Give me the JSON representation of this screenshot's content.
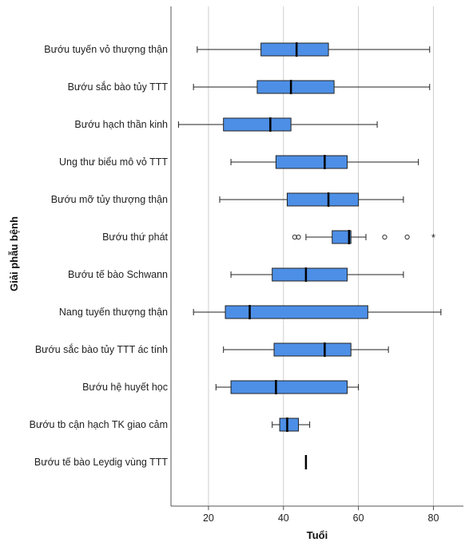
{
  "chart_data": {
    "type": "boxplot",
    "orientation": "horizontal",
    "xlabel": "Tuổi",
    "ylabel": "Giải phẫu bệnh",
    "xlim": [
      10,
      88
    ],
    "xticks": [
      20,
      40,
      60,
      80
    ],
    "grid": "vertical",
    "box_color": "#4d8fe6",
    "categories": [
      "Bướu tuyến vỏ thượng thận",
      "Bướu sắc bào tủy TTT",
      "Bướu hạch thần kinh",
      "Ung thư biểu mô vỏ TTT",
      "Bướu mỡ tủy thượng thận",
      "Bướu thứ phát",
      "Bướu tế bào Schwann",
      "Nang tuyến thượng thận",
      "Bướu sắc bào tủy TTT ác tính",
      "Bướu hệ huyết học",
      "Bướu tb cận hạch TK giao cảm",
      "Bướu tế bào Leydig vùng TTT"
    ],
    "boxes": [
      {
        "min": 17,
        "q1": 34,
        "median": 43.5,
        "q3": 52,
        "max": 79,
        "outliers": [],
        "extremes": []
      },
      {
        "min": 16,
        "q1": 33,
        "median": 42,
        "q3": 53.5,
        "max": 79,
        "outliers": [],
        "extremes": []
      },
      {
        "min": 12,
        "q1": 24,
        "median": 36.5,
        "q3": 42,
        "max": 65,
        "outliers": [],
        "extremes": []
      },
      {
        "min": 26,
        "q1": 38,
        "median": 51,
        "q3": 57,
        "max": 76,
        "outliers": [],
        "extremes": []
      },
      {
        "min": 23,
        "q1": 41,
        "median": 52,
        "q3": 60,
        "max": 72,
        "outliers": [],
        "extremes": []
      },
      {
        "min": 46,
        "q1": 53,
        "median": 57.5,
        "q3": 58,
        "max": 62,
        "outliers": [
          43,
          44,
          67,
          73
        ],
        "extremes": [
          80
        ]
      },
      {
        "min": 26,
        "q1": 37,
        "median": 46,
        "q3": 57,
        "max": 72,
        "outliers": [],
        "extremes": []
      },
      {
        "min": 16,
        "q1": 24.5,
        "median": 31,
        "q3": 62.5,
        "max": 82,
        "outliers": [],
        "extremes": []
      },
      {
        "min": 24,
        "q1": 37.5,
        "median": 51,
        "q3": 58,
        "max": 68,
        "outliers": [],
        "extremes": []
      },
      {
        "min": 22,
        "q1": 26,
        "median": 38,
        "q3": 57,
        "max": 60,
        "outliers": [],
        "extremes": []
      },
      {
        "min": 37,
        "q1": 39,
        "median": 41,
        "q3": 44,
        "max": 47,
        "outliers": [],
        "extremes": []
      },
      {
        "min": 46,
        "q1": 46,
        "median": 46,
        "q3": 46,
        "max": 46,
        "outliers": [],
        "extremes": []
      }
    ]
  }
}
